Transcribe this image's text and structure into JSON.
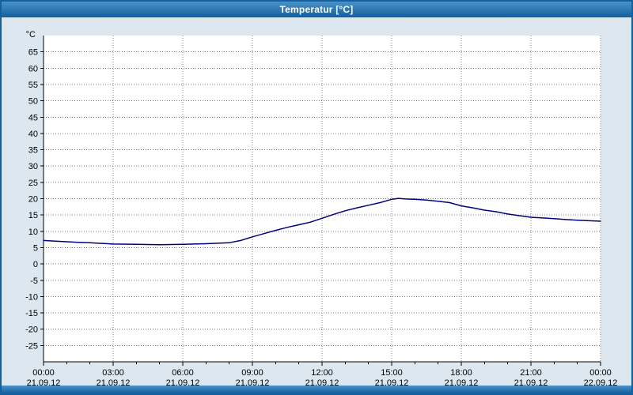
{
  "window": {
    "title": "Temperatur [°C]"
  },
  "colors": {
    "titlebar_top": "#4a92c8",
    "titlebar_bottom": "#135e9e",
    "background": "#dce7f0",
    "plot_bg": "#ffffff",
    "grid": "#808080",
    "axis": "#000000",
    "line": "#000080"
  },
  "chart_data": {
    "type": "line",
    "title": "Temperatur [°C]",
    "y_unit_label": "°C",
    "ylim": [
      -30,
      70
    ],
    "y_ticks": [
      65,
      60,
      55,
      50,
      45,
      40,
      35,
      30,
      25,
      20,
      15,
      10,
      5,
      0,
      -5,
      -10,
      -15,
      -20,
      -25
    ],
    "xlim_hours": [
      0,
      24
    ],
    "x_ticks": [
      {
        "time": "00:00",
        "date": "21.09.12"
      },
      {
        "time": "03:00",
        "date": "21.09.12"
      },
      {
        "time": "06:00",
        "date": "21.09.12"
      },
      {
        "time": "09:00",
        "date": "21.09.12"
      },
      {
        "time": "12:00",
        "date": "21.09.12"
      },
      {
        "time": "15:00",
        "date": "21.09.12"
      },
      {
        "time": "18:00",
        "date": "21.09.12"
      },
      {
        "time": "21:00",
        "date": "21.09.12"
      },
      {
        "time": "00:00",
        "date": "22.09.12"
      }
    ],
    "grid": true,
    "legend": "none",
    "series": [
      {
        "name": "Temperatur",
        "color": "#000080",
        "points": [
          [
            0,
            7.2
          ],
          [
            0.5,
            7.0
          ],
          [
            1,
            6.8
          ],
          [
            1.5,
            6.6
          ],
          [
            2,
            6.5
          ],
          [
            3,
            6.1
          ],
          [
            4,
            6.0
          ],
          [
            5,
            5.9
          ],
          [
            6,
            6.0
          ],
          [
            7,
            6.2
          ],
          [
            8,
            6.5
          ],
          [
            8.5,
            7.2
          ],
          [
            9,
            8.3
          ],
          [
            9.5,
            9.3
          ],
          [
            10,
            10.3
          ],
          [
            10.5,
            11.2
          ],
          [
            11,
            12.0
          ],
          [
            11.5,
            12.8
          ],
          [
            12,
            14.0
          ],
          [
            12.5,
            15.2
          ],
          [
            13,
            16.3
          ],
          [
            13.5,
            17.2
          ],
          [
            14,
            18.0
          ],
          [
            14.5,
            18.8
          ],
          [
            15,
            19.8
          ],
          [
            15.3,
            20.1
          ],
          [
            15.6,
            19.9
          ],
          [
            16,
            19.8
          ],
          [
            16.5,
            19.6
          ],
          [
            17,
            19.2
          ],
          [
            17.5,
            18.8
          ],
          [
            18,
            17.8
          ],
          [
            18.5,
            17.2
          ],
          [
            19,
            16.5
          ],
          [
            19.5,
            16.0
          ],
          [
            20,
            15.3
          ],
          [
            20.5,
            14.8
          ],
          [
            21,
            14.3
          ],
          [
            21.5,
            14.1
          ],
          [
            22,
            13.9
          ],
          [
            22.5,
            13.6
          ],
          [
            23,
            13.4
          ],
          [
            24,
            13.1
          ]
        ]
      }
    ]
  }
}
